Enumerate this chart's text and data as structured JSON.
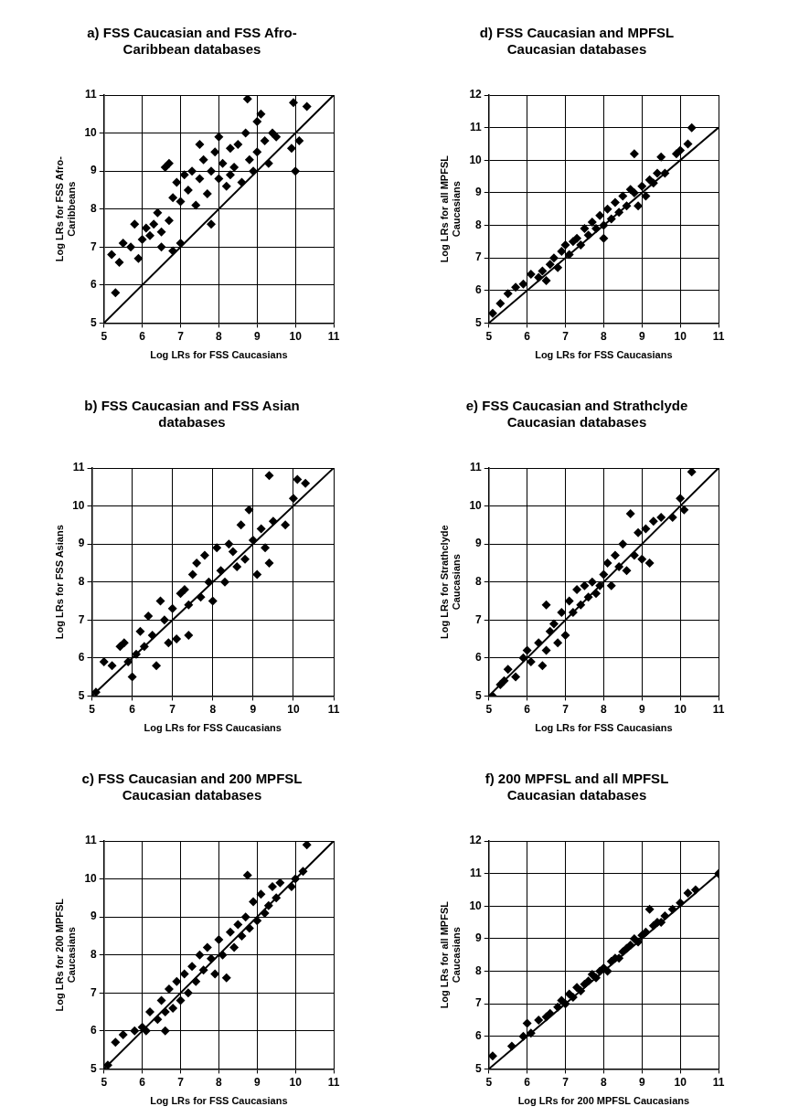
{
  "chart_data": [
    {
      "type": "scatter",
      "title": "a) FSS Caucasian and FSS Afro-Caribbean databases",
      "xlabel": "Log LRs for FSS Caucasians",
      "ylabel": "Log LRs for FSS Afro-Caribbeans",
      "xlim": [
        5,
        11
      ],
      "ylim": [
        5,
        11
      ],
      "xticks": [
        5,
        6,
        7,
        8,
        9,
        10,
        11
      ],
      "yticks": [
        5,
        6,
        7,
        8,
        9,
        10,
        11
      ],
      "grid": true,
      "marker": "diamond",
      "series": [
        {
          "type": "scatter",
          "color": "#000000",
          "x": [
            5.2,
            5.3,
            5.4,
            5.5,
            5.7,
            5.8,
            5.9,
            6.0,
            6.1,
            6.2,
            6.3,
            6.4,
            6.5,
            6.5,
            6.6,
            6.7,
            6.7,
            6.8,
            6.8,
            6.9,
            7.0,
            7.0,
            7.1,
            7.2,
            7.3,
            7.4,
            7.5,
            7.5,
            7.6,
            7.7,
            7.8,
            7.8,
            7.9,
            8.0,
            8.0,
            8.1,
            8.2,
            8.3,
            8.3,
            8.4,
            8.5,
            8.6,
            8.7,
            8.75,
            8.8,
            8.9,
            9.0,
            9.0,
            9.1,
            9.2,
            9.3,
            9.4,
            9.5,
            9.9,
            9.95,
            10.0,
            10.1,
            10.3
          ],
          "values": [
            6.8,
            5.8,
            6.6,
            7.1,
            7.0,
            7.6,
            6.7,
            7.2,
            7.5,
            7.3,
            7.6,
            7.9,
            7.4,
            7.0,
            9.1,
            9.2,
            7.7,
            6.9,
            8.3,
            8.7,
            8.2,
            7.1,
            8.9,
            8.5,
            9.0,
            8.1,
            9.7,
            8.8,
            9.3,
            8.4,
            9.0,
            7.6,
            9.5,
            8.8,
            9.9,
            9.2,
            8.6,
            9.6,
            8.9,
            9.1,
            9.7,
            8.7,
            10.0,
            10.9,
            9.3,
            9.0,
            10.3,
            9.5,
            10.5,
            9.8,
            9.2,
            10.0,
            9.9,
            9.6,
            10.8,
            9.0,
            9.8,
            10.7
          ]
        },
        {
          "type": "line",
          "color": "#000000",
          "marker": "none",
          "x": [
            5,
            11
          ],
          "values": [
            5,
            11
          ]
        }
      ]
    },
    {
      "type": "scatter",
      "title": "d) FSS Caucasian and MPFSL Caucasian databases",
      "xlabel": "Log LRs for FSS Caucasians",
      "ylabel": "Log LRs for all MPFSL Caucasians",
      "xlim": [
        5,
        11
      ],
      "ylim": [
        5,
        12
      ],
      "xticks": [
        5,
        6,
        7,
        8,
        9,
        10,
        11
      ],
      "yticks": [
        5,
        6,
        7,
        8,
        9,
        10,
        11,
        12
      ],
      "grid": true,
      "marker": "diamond",
      "series": [
        {
          "type": "scatter",
          "color": "#000000",
          "x": [
            5.1,
            5.3,
            5.5,
            5.7,
            5.9,
            6.1,
            6.3,
            6.4,
            6.5,
            6.6,
            6.7,
            6.8,
            6.9,
            7.0,
            7.1,
            7.2,
            7.3,
            7.4,
            7.5,
            7.6,
            7.7,
            7.8,
            7.9,
            8.0,
            8.0,
            8.1,
            8.2,
            8.3,
            8.4,
            8.5,
            8.6,
            8.7,
            8.8,
            8.8,
            8.9,
            9.0,
            9.1,
            9.2,
            9.3,
            9.4,
            9.5,
            9.6,
            9.9,
            10.0,
            10.2,
            10.3
          ],
          "values": [
            5.3,
            5.6,
            5.9,
            6.1,
            6.2,
            6.5,
            6.4,
            6.6,
            6.3,
            6.8,
            7.0,
            6.7,
            7.2,
            7.4,
            7.1,
            7.5,
            7.6,
            7.4,
            7.9,
            7.7,
            8.1,
            7.9,
            8.3,
            8.0,
            7.6,
            8.5,
            8.2,
            8.7,
            8.4,
            8.9,
            8.6,
            9.1,
            9.0,
            10.2,
            8.6,
            9.2,
            8.9,
            9.4,
            9.3,
            9.6,
            10.1,
            9.6,
            10.2,
            10.3,
            10.5,
            11.0
          ]
        },
        {
          "type": "line",
          "color": "#000000",
          "marker": "none",
          "x": [
            5,
            11
          ],
          "values": [
            5,
            11
          ]
        }
      ]
    },
    {
      "type": "scatter",
      "title": "b) FSS Caucasian and FSS Asian databases",
      "xlabel": "Log LRs for FSS Caucasians",
      "ylabel": "Log LRs for FSS Asians",
      "xlim": [
        5,
        11
      ],
      "ylim": [
        5,
        11
      ],
      "xticks": [
        5,
        6,
        7,
        8,
        9,
        10,
        11
      ],
      "yticks": [
        5,
        6,
        7,
        8,
        9,
        10,
        11
      ],
      "grid": true,
      "marker": "diamond",
      "series": [
        {
          "type": "scatter",
          "color": "#000000",
          "x": [
            5.1,
            5.3,
            5.5,
            5.7,
            5.8,
            5.9,
            6.0,
            6.1,
            6.2,
            6.3,
            6.4,
            6.5,
            6.6,
            6.7,
            6.8,
            6.9,
            7.0,
            7.1,
            7.2,
            7.3,
            7.4,
            7.4,
            7.5,
            7.6,
            7.7,
            7.8,
            7.9,
            8.0,
            8.1,
            8.2,
            8.3,
            8.4,
            8.5,
            8.6,
            8.7,
            8.8,
            8.9,
            9.0,
            9.1,
            9.2,
            9.3,
            9.4,
            9.4,
            9.5,
            9.8,
            10.0,
            10.1,
            10.3
          ],
          "values": [
            5.1,
            5.9,
            5.8,
            6.3,
            6.4,
            5.9,
            5.5,
            6.1,
            6.7,
            6.3,
            7.1,
            6.6,
            5.8,
            7.5,
            7.0,
            6.4,
            7.3,
            6.5,
            7.7,
            7.8,
            7.4,
            6.6,
            8.2,
            8.5,
            7.6,
            8.7,
            8.0,
            7.5,
            8.9,
            8.3,
            8.0,
            9.0,
            8.8,
            8.4,
            9.5,
            8.6,
            9.9,
            9.1,
            8.2,
            9.4,
            8.9,
            10.8,
            8.5,
            9.6,
            9.5,
            10.2,
            10.7,
            10.6
          ]
        },
        {
          "type": "line",
          "color": "#000000",
          "marker": "none",
          "x": [
            5,
            11
          ],
          "values": [
            5,
            11
          ]
        }
      ]
    },
    {
      "type": "scatter",
      "title": "e) FSS Caucasian and Strathclyde Caucasian databases",
      "xlabel": "Log LRs for FSS Caucasians",
      "ylabel": "Log LRs for Strathclyde Caucasians",
      "xlim": [
        5,
        11
      ],
      "ylim": [
        5,
        11
      ],
      "xticks": [
        5,
        6,
        7,
        8,
        9,
        10,
        11
      ],
      "yticks": [
        5,
        6,
        7,
        8,
        9,
        10,
        11
      ],
      "grid": true,
      "marker": "diamond",
      "series": [
        {
          "type": "scatter",
          "color": "#000000",
          "x": [
            5.1,
            5.3,
            5.4,
            5.5,
            5.7,
            5.9,
            6.0,
            6.1,
            6.3,
            6.4,
            6.5,
            6.5,
            6.6,
            6.7,
            6.8,
            6.9,
            7.0,
            7.1,
            7.2,
            7.3,
            7.4,
            7.5,
            7.6,
            7.7,
            7.8,
            7.9,
            8.0,
            8.1,
            8.2,
            8.3,
            8.4,
            8.5,
            8.6,
            8.7,
            8.8,
            8.9,
            9.0,
            9.1,
            9.2,
            9.3,
            9.5,
            9.8,
            10.0,
            10.1,
            10.3
          ],
          "values": [
            5.0,
            5.3,
            5.4,
            5.7,
            5.5,
            6.0,
            6.2,
            5.9,
            6.4,
            5.8,
            7.4,
            6.2,
            6.7,
            6.9,
            6.4,
            7.2,
            6.6,
            7.5,
            7.2,
            7.8,
            7.4,
            7.9,
            7.6,
            8.0,
            7.7,
            7.9,
            8.2,
            8.5,
            7.9,
            8.7,
            8.4,
            9.0,
            8.3,
            9.8,
            8.7,
            9.3,
            8.6,
            9.4,
            8.5,
            9.6,
            9.7,
            9.7,
            10.2,
            9.9,
            10.9
          ]
        },
        {
          "type": "line",
          "color": "#000000",
          "marker": "none",
          "x": [
            5,
            11
          ],
          "values": [
            5,
            11
          ]
        }
      ]
    },
    {
      "type": "scatter",
      "title": "c) FSS Caucasian and 200 MPFSL Caucasian databases",
      "xlabel": "Log LRs for FSS Caucasians",
      "ylabel": "Log LRs for 200 MPFSL Caucasians",
      "xlim": [
        5,
        11
      ],
      "ylim": [
        5,
        11
      ],
      "xticks": [
        5,
        6,
        7,
        8,
        9,
        10,
        11
      ],
      "yticks": [
        5,
        6,
        7,
        8,
        9,
        10,
        11
      ],
      "grid": true,
      "marker": "diamond",
      "series": [
        {
          "type": "scatter",
          "color": "#000000",
          "x": [
            5.1,
            5.3,
            5.5,
            5.8,
            6.0,
            6.1,
            6.2,
            6.4,
            6.5,
            6.6,
            6.6,
            6.7,
            6.8,
            6.9,
            7.0,
            7.1,
            7.2,
            7.3,
            7.4,
            7.5,
            7.6,
            7.7,
            7.8,
            7.9,
            8.0,
            8.1,
            8.2,
            8.3,
            8.4,
            8.5,
            8.6,
            8.7,
            8.75,
            8.8,
            8.9,
            9.0,
            9.1,
            9.2,
            9.3,
            9.4,
            9.5,
            9.6,
            9.9,
            10.0,
            10.2,
            10.3
          ],
          "values": [
            5.1,
            5.7,
            5.9,
            6.0,
            6.1,
            6.0,
            6.5,
            6.3,
            6.8,
            6.5,
            6.0,
            7.1,
            6.6,
            7.3,
            6.8,
            7.5,
            7.0,
            7.7,
            7.3,
            8.0,
            7.6,
            8.2,
            7.9,
            7.5,
            8.4,
            8.0,
            7.4,
            8.6,
            8.2,
            8.8,
            8.5,
            9.0,
            10.1,
            8.7,
            9.4,
            8.9,
            9.6,
            9.1,
            9.3,
            9.8,
            9.5,
            9.9,
            9.8,
            10.0,
            10.2,
            10.9
          ]
        },
        {
          "type": "line",
          "color": "#000000",
          "marker": "none",
          "x": [
            5,
            11
          ],
          "values": [
            5,
            11
          ]
        }
      ]
    },
    {
      "type": "scatter",
      "title": "f) 200 MPFSL and all MPFSL Caucasian databases",
      "xlabel": "Log LRs for 200 MPFSL Caucasians",
      "ylabel": "Log LRs for all MPFSL Caucasians",
      "xlim": [
        5,
        11
      ],
      "ylim": [
        5,
        12
      ],
      "xticks": [
        5,
        6,
        7,
        8,
        9,
        10,
        11
      ],
      "yticks": [
        5,
        6,
        7,
        8,
        9,
        10,
        11,
        12
      ],
      "grid": true,
      "marker": "diamond",
      "series": [
        {
          "type": "scatter",
          "color": "#000000",
          "x": [
            5.1,
            5.6,
            5.9,
            6.0,
            6.1,
            6.3,
            6.5,
            6.6,
            6.8,
            6.9,
            7.0,
            7.1,
            7.2,
            7.3,
            7.4,
            7.5,
            7.6,
            7.7,
            7.8,
            7.9,
            8.0,
            8.1,
            8.2,
            8.3,
            8.4,
            8.5,
            8.6,
            8.7,
            8.8,
            8.9,
            9.0,
            9.1,
            9.2,
            9.3,
            9.4,
            9.5,
            9.6,
            9.8,
            10.0,
            10.2,
            10.4,
            11.0
          ],
          "values": [
            5.4,
            5.7,
            6.0,
            6.4,
            6.1,
            6.5,
            6.6,
            6.7,
            6.9,
            7.1,
            7.0,
            7.3,
            7.2,
            7.5,
            7.4,
            7.6,
            7.7,
            7.9,
            7.8,
            8.0,
            8.1,
            8.0,
            8.3,
            8.4,
            8.4,
            8.6,
            8.7,
            8.8,
            9.0,
            8.9,
            9.1,
            9.2,
            9.9,
            9.4,
            9.5,
            9.5,
            9.7,
            9.9,
            10.1,
            10.4,
            10.5,
            11.0
          ]
        },
        {
          "type": "line",
          "color": "#000000",
          "marker": "none",
          "x": [
            5,
            11
          ],
          "values": [
            5,
            11
          ]
        }
      ]
    }
  ]
}
